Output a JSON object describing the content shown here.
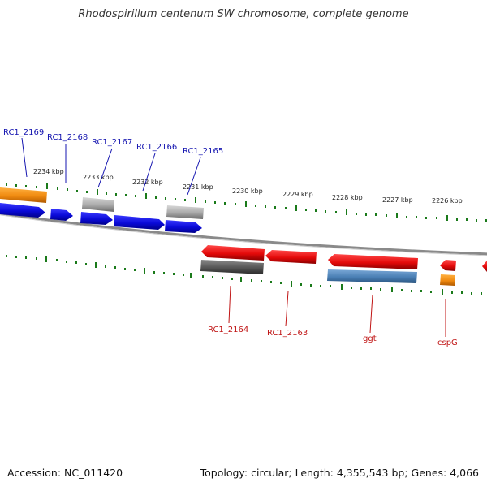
{
  "title": "Rhodospirillum centenum SW chromosome, complete genome",
  "footer": {
    "accession": "Accession: NC_011420",
    "summary": "Topology: circular; Length: 4,355,543 bp; Genes: 4,066"
  },
  "colors": {
    "blue_gene": "#1010e8",
    "red_gene": "#e81010",
    "orange_gene": "#f08a10",
    "gray_gene": "#a9a9a9",
    "dark_gray_gene": "#5a5a5a",
    "steelblue_gene": "#4a7fb4",
    "tick": "#1a7a1a",
    "upper_label": "#1515b0",
    "lower_label": "#c01515",
    "backbone": "#888888"
  },
  "scale_labels": [
    "2234 kbp",
    "2233 kbp",
    "2232 kbp",
    "2231 kbp",
    "2230 kbp",
    "2229 kbp",
    "2228 kbp",
    "2227 kbp",
    "2226 kbp"
  ],
  "upper_gene_labels": [
    "RC1_2169",
    "RC1_2168",
    "RC1_2167",
    "RC1_2166",
    "RC1_2165"
  ],
  "lower_gene_labels": [
    "RC1_2164",
    "RC1_2163",
    "ggt",
    "cspG"
  ]
}
